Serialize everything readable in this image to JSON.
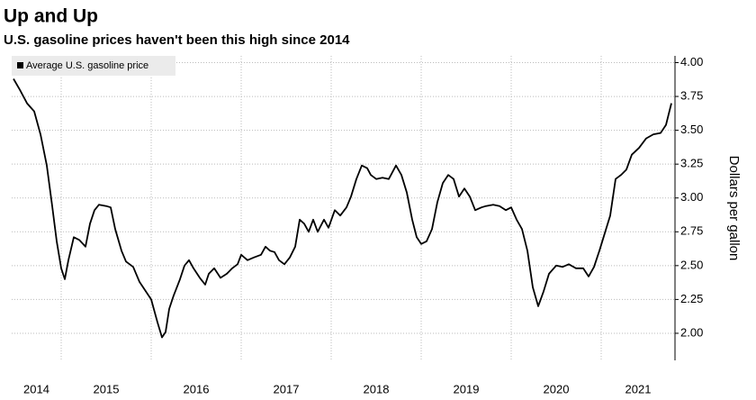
{
  "chart_data": {
    "type": "line",
    "title": "Up and Up",
    "subtitle": "U.S. gasoline prices haven't been this high since 2014",
    "ylabel": "Dollars per gallon",
    "legend": "upper left",
    "grid": true,
    "xlim": [
      2014.45,
      2021.82
    ],
    "xticks": [
      2014,
      2015,
      2016,
      2017,
      2018,
      2019,
      2020,
      2021
    ],
    "ylim": [
      1.8,
      4.05
    ],
    "yticks": [
      {
        "value": 2,
        "label": "2.00"
      },
      {
        "value": 2.25,
        "label": "2.25"
      },
      {
        "value": 2.5,
        "label": "2.50"
      },
      {
        "value": 2.75,
        "label": "2.75"
      },
      {
        "value": 3,
        "label": "3.00"
      },
      {
        "value": 3.25,
        "label": "3.25"
      },
      {
        "value": 3.5,
        "label": "3.50"
      },
      {
        "value": 3.75,
        "label": "3.75"
      },
      {
        "value": 4,
        "label": "4.00"
      }
    ],
    "x": [
      2014.47,
      2014.54,
      2014.62,
      2014.7,
      2014.77,
      2014.84,
      2014.9,
      2014.95,
      2015.0,
      2015.04,
      2015.08,
      2015.14,
      2015.2,
      2015.27,
      2015.32,
      2015.37,
      2015.42,
      2015.5,
      2015.55,
      2015.6,
      2015.67,
      2015.72,
      2015.8,
      2015.87,
      2015.94,
      2016.0,
      2016.07,
      2016.12,
      2016.16,
      2016.2,
      2016.25,
      2016.32,
      2016.37,
      2016.42,
      2016.47,
      2016.54,
      2016.6,
      2016.64,
      2016.7,
      2016.77,
      2016.84,
      2016.9,
      2016.96,
      2017.0,
      2017.07,
      2017.14,
      2017.22,
      2017.27,
      2017.32,
      2017.37,
      2017.42,
      2017.48,
      2017.54,
      2017.6,
      2017.65,
      2017.7,
      2017.75,
      2017.8,
      2017.85,
      2017.92,
      2017.97,
      2018.04,
      2018.1,
      2018.17,
      2018.22,
      2018.28,
      2018.34,
      2018.4,
      2018.44,
      2018.5,
      2018.57,
      2018.64,
      2018.72,
      2018.78,
      2018.84,
      2018.9,
      2018.95,
      2019.0,
      2019.06,
      2019.12,
      2019.18,
      2019.24,
      2019.3,
      2019.36,
      2019.42,
      2019.48,
      2019.54,
      2019.6,
      2019.67,
      2019.72,
      2019.8,
      2019.87,
      2019.94,
      2020.0,
      2020.06,
      2020.12,
      2020.18,
      2020.24,
      2020.3,
      2020.36,
      2020.42,
      2020.5,
      2020.57,
      2020.64,
      2020.72,
      2020.8,
      2020.86,
      2020.92,
      2020.98,
      2021.04,
      2021.1,
      2021.16,
      2021.22,
      2021.28,
      2021.34,
      2021.42,
      2021.5,
      2021.58,
      2021.66,
      2021.72,
      2021.78
    ],
    "series": [
      {
        "name": "Average U.S. gasoline price",
        "color": "#000000",
        "values": [
          3.88,
          3.8,
          3.7,
          3.64,
          3.47,
          3.24,
          2.94,
          2.68,
          2.48,
          2.4,
          2.54,
          2.71,
          2.69,
          2.64,
          2.81,
          2.91,
          2.95,
          2.94,
          2.93,
          2.77,
          2.61,
          2.53,
          2.49,
          2.38,
          2.31,
          2.25,
          2.08,
          1.97,
          2.01,
          2.18,
          2.28,
          2.4,
          2.5,
          2.54,
          2.48,
          2.41,
          2.36,
          2.44,
          2.48,
          2.41,
          2.44,
          2.48,
          2.51,
          2.58,
          2.54,
          2.56,
          2.58,
          2.64,
          2.61,
          2.6,
          2.54,
          2.51,
          2.56,
          2.64,
          2.84,
          2.81,
          2.75,
          2.84,
          2.75,
          2.84,
          2.78,
          2.91,
          2.87,
          2.93,
          3.01,
          3.14,
          3.24,
          3.22,
          3.17,
          3.14,
          3.15,
          3.14,
          3.24,
          3.17,
          3.04,
          2.84,
          2.71,
          2.66,
          2.68,
          2.77,
          2.97,
          3.11,
          3.17,
          3.14,
          3.01,
          3.07,
          3.01,
          2.91,
          2.93,
          2.94,
          2.95,
          2.94,
          2.91,
          2.93,
          2.84,
          2.77,
          2.61,
          2.34,
          2.2,
          2.31,
          2.44,
          2.5,
          2.49,
          2.51,
          2.48,
          2.48,
          2.42,
          2.49,
          2.61,
          2.74,
          2.87,
          3.14,
          3.17,
          3.21,
          3.32,
          3.37,
          3.44,
          3.47,
          3.48,
          3.54,
          3.7
        ]
      }
    ]
  }
}
